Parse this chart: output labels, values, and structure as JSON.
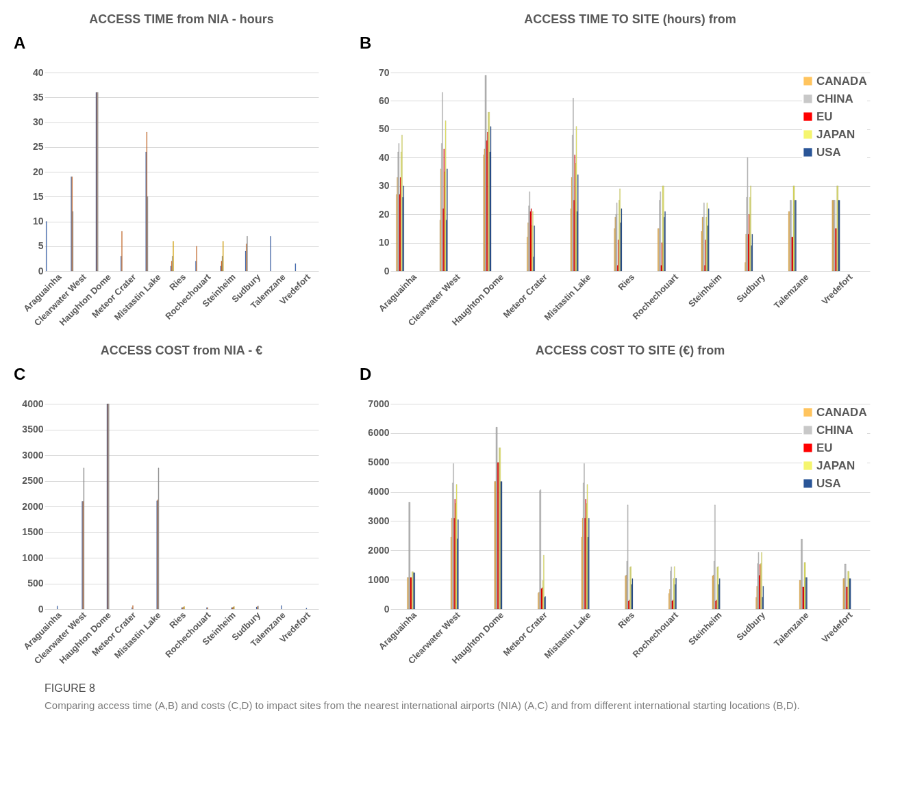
{
  "chart_data": [
    {
      "type": "bar",
      "title": "ACCESS TIME from NIA - hours",
      "annotations": [
        "A"
      ],
      "categories": [
        "Araguainha",
        "Clearwater West",
        "Haughton Dome",
        "Meteor Crater",
        "Mistastin Lake",
        "Ries",
        "Rochechouart",
        "Steinheim",
        "Sudbury",
        "Talemzane",
        "Vredefort"
      ],
      "series": [
        {
          "color": "#4472c4",
          "values": [
            10,
            19,
            36,
            3,
            24,
            1,
            2,
            1,
            4,
            7,
            1.5
          ]
        },
        {
          "color": "#ed7d31",
          "values": [
            null,
            19,
            36,
            8,
            28,
            2,
            5,
            2,
            5.5,
            null,
            null
          ]
        },
        {
          "color": "#a5a5a5",
          "values": [
            null,
            12,
            36,
            null,
            15,
            3,
            null,
            3,
            7,
            null,
            null
          ]
        },
        {
          "color": "#ffc000",
          "values": [
            null,
            null,
            null,
            null,
            null,
            6,
            null,
            6,
            null,
            null,
            null
          ]
        }
      ],
      "ylim": [
        0,
        40
      ],
      "yticks": [
        0,
        5,
        10,
        15,
        20,
        25,
        30,
        35,
        40
      ],
      "grid": "y"
    },
    {
      "type": "bar",
      "title": "ACCESS TIME TO SITE  (hours) from",
      "annotations": [
        "B"
      ],
      "categories": [
        "Araguainha",
        "Clearwater West",
        "Haughton Dome",
        "Meteor Crater",
        "Mistastin Lake",
        "Ries",
        "Rochechouart",
        "Steinheim",
        "Sudbury",
        "Talemzane",
        "Vredefort"
      ],
      "series": [
        {
          "name": "CANADA",
          "color": "#ffc45e",
          "values": [
            27,
            18,
            41,
            12,
            22,
            15,
            15,
            14,
            3,
            21,
            25
          ]
        },
        {
          "color": "#ffc45e",
          "values": [
            33,
            36,
            43,
            17,
            33,
            19,
            15,
            19,
            13,
            21,
            25
          ]
        },
        {
          "name": "CHINA",
          "color": "#c8c8c8",
          "values": [
            42,
            45,
            69,
            23,
            48,
            20,
            25,
            19,
            26,
            25,
            25
          ]
        },
        {
          "color": "#c8c8c8",
          "values": [
            45,
            63,
            69,
            28,
            61,
            24,
            28,
            24,
            40,
            25,
            25
          ]
        },
        {
          "name": "EU",
          "color": "#ff0000",
          "values": [
            27,
            22,
            46,
            21,
            25,
            2,
            2,
            2,
            13,
            12,
            15
          ]
        },
        {
          "color": "#ff0000",
          "values": [
            33,
            43,
            49,
            22,
            41,
            11,
            10,
            11,
            20,
            12,
            15
          ]
        },
        {
          "name": "JAPAN",
          "color": "#f5f56e",
          "values": [
            42,
            35,
            56,
            16,
            38,
            25,
            30,
            19,
            26,
            30,
            30
          ]
        },
        {
          "color": "#f5f56e",
          "values": [
            48,
            53,
            56,
            21,
            51,
            29,
            30,
            24,
            30,
            30,
            30
          ]
        },
        {
          "name": "USA",
          "color": "#2a5597",
          "values": [
            26,
            18,
            42,
            5,
            21,
            17,
            19,
            16,
            9,
            25,
            25
          ]
        },
        {
          "color": "#2a5597",
          "values": [
            30,
            36,
            51,
            16,
            34,
            22,
            21,
            22,
            13,
            25,
            25
          ]
        }
      ],
      "ylim": [
        0,
        70
      ],
      "yticks": [
        0,
        10,
        20,
        30,
        40,
        50,
        60,
        70
      ],
      "grid": "y",
      "legend": "top right"
    },
    {
      "type": "bar",
      "title": "ACCESS COST from NIA - €",
      "annotations": [
        "C"
      ],
      "categories": [
        "Araguainha",
        "Clearwater West",
        "Haughton Dome",
        "Meteor Crater",
        "Mistastin Lake",
        "Ries",
        "Rochechouart",
        "Steinheim",
        "Sudbury",
        "Talemzane",
        "Vredefort"
      ],
      "series": [
        {
          "color": "#4472c4",
          "values": [
            60,
            2100,
            4000,
            30,
            2110,
            30,
            30,
            30,
            40,
            70,
            20
          ]
        },
        {
          "color": "#ed7d31",
          "values": [
            null,
            2100,
            4000,
            70,
            2130,
            30,
            30,
            30,
            50,
            null,
            null
          ]
        },
        {
          "color": "#a5a5a5",
          "values": [
            null,
            2750,
            4000,
            null,
            2750,
            40,
            null,
            40,
            60,
            null,
            null
          ]
        },
        {
          "color": "#ffc000",
          "values": [
            null,
            null,
            null,
            null,
            null,
            50,
            null,
            50,
            null,
            null,
            null
          ]
        }
      ],
      "ylim": [
        0,
        4000
      ],
      "yticks": [
        0,
        500,
        1000,
        1500,
        2000,
        2500,
        3000,
        3500,
        4000
      ],
      "grid": "y"
    },
    {
      "type": "bar",
      "title": "ACCESS COST TO SITE  (€) from",
      "annotations": [
        "D",
        "FIGURE 8",
        "Comparing access time (A,B) and costs (C,D) to impact sites from the nearest international airports (NIA) (A,C) and from different international starting locations (B,D)."
      ],
      "categories": [
        "Araguainha",
        "Clearwater West",
        "Haughton Dome",
        "Meteor Crater",
        "Mistastin Lake",
        "Ries",
        "Rochechouart",
        "Steinheim",
        "Sudbury",
        "Talemzane",
        "Vredefort"
      ],
      "series": [
        {
          "name": "CANADA",
          "color": "#ffc45e",
          "values": [
            1080,
            2450,
            4350,
            550,
            2450,
            1130,
            530,
            1130,
            400,
            980,
            1040
          ]
        },
        {
          "color": "#ffc45e",
          "values": [
            1080,
            3100,
            4350,
            580,
            3100,
            1160,
            670,
            1160,
            780,
            980,
            1040
          ]
        },
        {
          "name": "CHINA",
          "color": "#c8c8c8",
          "values": [
            3640,
            4300,
            6200,
            4040,
            4300,
            1630,
            1300,
            1630,
            1550,
            2380,
            1540
          ]
        },
        {
          "color": "#c8c8c8",
          "values": [
            3640,
            4960,
            6200,
            4070,
            4960,
            3550,
            1440,
            3550,
            1930,
            2380,
            1540
          ]
        },
        {
          "name": "EU",
          "color": "#ff0000",
          "values": [
            1080,
            3100,
            5000,
            700,
            3100,
            280,
            280,
            280,
            1150,
            750,
            750
          ]
        },
        {
          "color": "#ff0000",
          "values": [
            1080,
            3750,
            5000,
            730,
            3750,
            310,
            310,
            310,
            1530,
            750,
            750
          ]
        },
        {
          "name": "JAPAN",
          "color": "#f5f56e",
          "values": [
            1270,
            3600,
            5500,
            970,
            3600,
            1430,
            1040,
            1430,
            1560,
            1590,
            1290
          ]
        },
        {
          "color": "#f5f56e",
          "values": [
            1270,
            4250,
            5500,
            1840,
            4250,
            1450,
            1450,
            1450,
            1930,
            1590,
            1290
          ]
        },
        {
          "name": "USA",
          "color": "#2a5597",
          "values": [
            1240,
            2400,
            4350,
            400,
            2450,
            840,
            840,
            840,
            410,
            1080,
            1040
          ]
        },
        {
          "color": "#2a5597",
          "values": [
            1240,
            3050,
            4350,
            430,
            3100,
            1040,
            1050,
            1040,
            780,
            1080,
            1040
          ]
        }
      ],
      "ylim": [
        0,
        7000
      ],
      "yticks": [
        0,
        1000,
        2000,
        3000,
        4000,
        5000,
        6000,
        7000
      ],
      "grid": "y",
      "legend": "top right"
    }
  ]
}
